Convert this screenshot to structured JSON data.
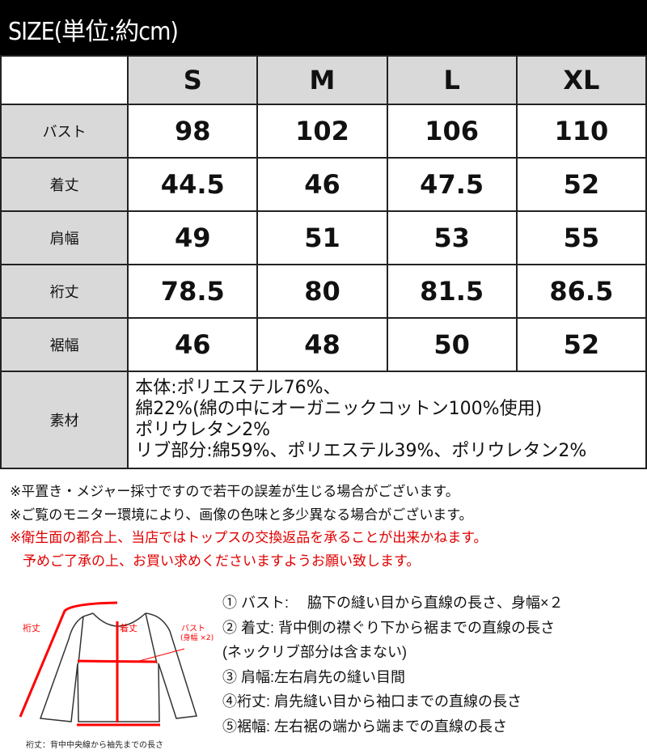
{
  "title": "SIZE(単位:約cm)",
  "sizes": [
    "S",
    "M",
    "L",
    "XL"
  ],
  "rows": [
    {
      "label": "バスト",
      "values": [
        "98",
        "102",
        "106",
        "110"
      ]
    },
    {
      "label": "着丈",
      "values": [
        "44.5",
        "46",
        "47.5",
        "52"
      ]
    },
    {
      "label": "肩幅",
      "values": [
        "49",
        "51",
        "53",
        "55"
      ]
    },
    {
      "label": "裄丈",
      "values": [
        "78.5",
        "80",
        "81.5",
        "86.5"
      ]
    },
    {
      "label": "裾幅",
      "values": [
        "46",
        "48",
        "50",
        "52"
      ]
    }
  ],
  "material": {
    "label": "素材",
    "lines": [
      "本体:ポリエステル76%、",
      "綿22%(綿の中にオーガニックコットン100%使用)",
      "ポリウレタン2%",
      "リブ部分:綿59%、ポリエステル39%、ポリウレタン2%"
    ]
  },
  "notes": [
    "※平置き・メジャー採寸ですので若干の誤差が生じる場合がございます。",
    "※ご覧のモニター環境により、画像の色味と多少異なる場合がございます。"
  ],
  "red_notes": [
    "※衛生面の都合上、当店ではトップスの交換返品を承ることが出来かねます。",
    "予めご了承の上、お買い求めくださいますようお願い致します。"
  ],
  "diagram": {
    "yuki_label": "裄丈",
    "kitake_label": "着丈",
    "bust_label": "バスト",
    "bust_sub": "(身幅 ×2)",
    "caption": "裄丈：背中中央線から袖先までの長さ",
    "accent": "#ff0000"
  },
  "legend": [
    "① バスト:　 脇下の縫い目から直線の長さ、身幅×２",
    "② 着丈:  背中側の襟ぐり下から裾までの直線の長さ",
    "(ネックリブ部分は含まない)",
    "③ 肩幅:左右肩先の縫い目間",
    "④裄丈:  肩先縫い目から袖口までの直線の長さ",
    "⑤裾幅:  左右裾の端から端までの直線の長さ"
  ]
}
